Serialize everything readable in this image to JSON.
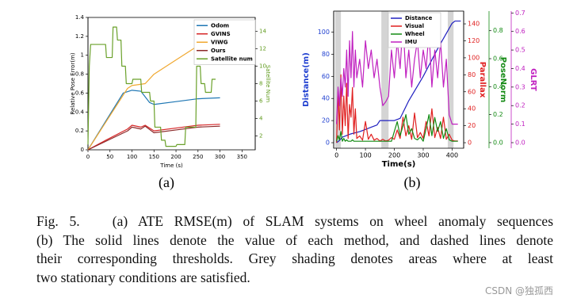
{
  "chart_data": [
    {
      "type": "line",
      "label": "(a)",
      "xlabel": "Time (s)",
      "ylabel": "Relative Pose Error(m)",
      "y2label": "Satellite Num",
      "y2color": "#5f9a1c",
      "xlim": [
        0,
        380
      ],
      "xticks": [
        0,
        50,
        100,
        150,
        200,
        250,
        300,
        350
      ],
      "ylim": [
        0,
        1.4
      ],
      "yticks": [
        0,
        0.2,
        0.4,
        0.6,
        0.8,
        1,
        1.2,
        1.4
      ],
      "y2lim": [
        0.4,
        15.6
      ],
      "y2ticks": [
        2,
        4,
        6,
        8,
        10,
        12,
        14
      ],
      "legend": "upper right",
      "series": [
        {
          "name": "Odom",
          "color": "#1f77b4",
          "x": [
            0,
            20,
            40,
            60,
            80,
            100,
            120,
            140,
            150,
            200,
            250,
            300
          ],
          "values": [
            0,
            0.15,
            0.3,
            0.45,
            0.6,
            0.63,
            0.62,
            0.5,
            0.48,
            0.51,
            0.54,
            0.55
          ]
        },
        {
          "name": "GVINS",
          "color": "#d62728",
          "x": [
            0,
            40,
            90,
            100,
            120,
            130,
            150,
            200,
            250,
            300
          ],
          "values": [
            0,
            0.1,
            0.22,
            0.26,
            0.24,
            0.26,
            0.2,
            0.23,
            0.26,
            0.27
          ]
        },
        {
          "name": "VIWG",
          "color": "#f0a830",
          "x": [
            0,
            90,
            100,
            130,
            150,
            200,
            250,
            280
          ],
          "values": [
            0,
            0.65,
            0.68,
            0.7,
            0.8,
            0.95,
            1.1,
            1.17
          ]
        },
        {
          "name": "Ours",
          "color": "#8c2a2a",
          "x": [
            0,
            90,
            100,
            120,
            130,
            150,
            200,
            250,
            300
          ],
          "values": [
            0,
            0.2,
            0.24,
            0.22,
            0.25,
            0.18,
            0.21,
            0.24,
            0.25
          ]
        },
        {
          "name": "Satellite num",
          "color": "#6aa12a",
          "axis": "y2",
          "x": [
            0,
            3,
            6,
            10,
            40,
            42,
            55,
            57,
            65,
            67,
            75,
            77,
            85,
            87,
            100,
            102,
            120,
            122,
            140,
            142,
            150,
            152,
            165,
            167,
            175,
            177,
            200,
            202,
            220,
            222,
            245,
            247,
            255,
            257,
            265,
            267,
            280,
            282,
            290
          ],
          "values": [
            1,
            10,
            12.5,
            12.5,
            12.5,
            11,
            11,
            14.5,
            14.5,
            13,
            13,
            10,
            10,
            8,
            8,
            8.5,
            8.5,
            7,
            7,
            6,
            6,
            3,
            3,
            1.5,
            1.5,
            0.8,
            0.8,
            1,
            1,
            3,
            3,
            10,
            10,
            8,
            8,
            7,
            7,
            8.5,
            8.5
          ]
        }
      ]
    },
    {
      "type": "line",
      "label": "(b)",
      "xlabel": "Time(s)",
      "ylabel": "Distance(m)",
      "ycolor": "#1f3fd0",
      "y2label": "Parallax",
      "y2color": "#e02020",
      "y3label": "PoseNorm",
      "y3color": "#138a13",
      "y4label": "GLRT",
      "y4color": "#c020c0",
      "xlim": [
        -10,
        440
      ],
      "xticks": [
        0,
        100,
        200,
        300,
        400
      ],
      "ylim": [
        -5,
        119
      ],
      "yticks": [
        0,
        20,
        40,
        60,
        80,
        100
      ],
      "y2lim": [
        -6.5,
        155
      ],
      "y2ticks": [
        0,
        20,
        40,
        60,
        80,
        100,
        120,
        140
      ],
      "y3lim": [
        -0.04,
        0.94
      ],
      "y3ticks": [
        {
          "value": 0,
          "label": "0.0"
        },
        0.2,
        0.4,
        0.6,
        0.8
      ],
      "y4lim": [
        -0.03,
        0.71
      ],
      "y4ticks": [
        {
          "value": 0,
          "label": "0.0"
        },
        0.1,
        0.2,
        0.3,
        0.4,
        0.5,
        0.6,
        0.7
      ],
      "shading": [
        [
          -5,
          15
        ],
        [
          155,
          180
        ],
        [
          385,
          405
        ]
      ],
      "shading_color": "#d4d4d4",
      "legend": "upper center",
      "series": [
        {
          "name": "Distance",
          "color": "#2020c0",
          "x": [
            0,
            10,
            20,
            50,
            80,
            100,
            120,
            140,
            150,
            160,
            200,
            220,
            250,
            300,
            350,
            400,
            410,
            430
          ],
          "values": [
            0,
            2,
            5,
            8,
            10,
            12,
            14,
            16,
            20,
            20,
            20,
            22,
            38,
            60,
            85,
            108,
            110,
            110
          ]
        },
        {
          "name": "Visual",
          "color": "#e02020",
          "axis": "y2",
          "x": [
            0,
            5,
            10,
            15,
            20,
            25,
            30,
            35,
            40,
            45,
            50,
            55,
            60,
            65,
            70,
            80,
            90,
            100,
            110,
            120,
            130,
            140,
            150,
            160,
            170,
            180,
            190,
            200,
            210,
            220,
            230,
            240,
            250,
            260,
            270,
            280,
            290,
            300,
            310,
            320,
            330,
            340,
            350,
            360,
            370,
            380,
            390,
            400,
            410,
            420
          ],
          "values": [
            0,
            60,
            15,
            80,
            10,
            55,
            20,
            70,
            5,
            45,
            30,
            65,
            10,
            40,
            5,
            8,
            3,
            25,
            4,
            10,
            3,
            5,
            2,
            4,
            2,
            3,
            6,
            4,
            15,
            5,
            30,
            8,
            20,
            4,
            35,
            6,
            12,
            5,
            25,
            8,
            40,
            6,
            18,
            5,
            30,
            4,
            10,
            3,
            2,
            2
          ]
        },
        {
          "name": "Wheel",
          "color": "#138a13",
          "axis": "y3",
          "x": [
            0,
            5,
            10,
            15,
            20,
            25,
            30,
            35,
            40,
            45,
            50,
            55,
            60,
            65,
            70,
            80,
            90,
            100,
            110,
            120,
            130,
            140,
            150,
            160,
            170,
            180,
            190,
            200,
            210,
            220,
            230,
            240,
            250,
            260,
            270,
            280,
            290,
            300,
            310,
            320,
            330,
            340,
            350,
            360,
            370,
            380,
            390,
            400,
            410,
            420
          ],
          "values": [
            0.01,
            0.05,
            0.02,
            0.08,
            0.01,
            0.03,
            0.01,
            0.02,
            0.01,
            0.01,
            0.01,
            0.02,
            0.01,
            0.01,
            0.01,
            0.01,
            0.01,
            0.01,
            0.01,
            0.01,
            0.01,
            0.01,
            0.01,
            0.01,
            0.01,
            0.01,
            0.01,
            0.08,
            0.15,
            0.05,
            0.12,
            0.2,
            0.06,
            0.1,
            0.03,
            0.02,
            0.04,
            0.01,
            0.1,
            0.2,
            0.05,
            0.18,
            0.08,
            0.15,
            0.03,
            0.1,
            0.02,
            0.01,
            0.01,
            0.01
          ]
        },
        {
          "name": "IMU",
          "color": "#c020c0",
          "axis": "y4",
          "x": [
            0,
            5,
            10,
            15,
            20,
            25,
            30,
            35,
            40,
            45,
            50,
            55,
            60,
            65,
            70,
            80,
            90,
            100,
            110,
            120,
            130,
            140,
            150,
            160,
            170,
            180,
            190,
            200,
            210,
            220,
            230,
            240,
            250,
            260,
            270,
            280,
            290,
            300,
            310,
            320,
            330,
            340,
            350,
            360,
            370,
            380,
            390,
            400,
            410,
            420
          ],
          "values": [
            0.1,
            0.3,
            0.2,
            0.35,
            0.25,
            0.4,
            0.3,
            0.5,
            0.25,
            0.55,
            0.35,
            0.6,
            0.3,
            0.5,
            0.35,
            0.45,
            0.3,
            0.55,
            0.4,
            0.5,
            0.35,
            0.45,
            0.3,
            0.2,
            0.22,
            0.25,
            0.5,
            0.35,
            0.55,
            0.4,
            0.65,
            0.35,
            0.5,
            0.3,
            0.45,
            0.55,
            0.35,
            0.5,
            0.4,
            0.6,
            0.3,
            0.5,
            0.35,
            0.55,
            0.3,
            0.45,
            0.15,
            0.1,
            0.1,
            0.1
          ]
        }
      ]
    }
  ],
  "caption": [
    "Fig. 5.   (a) ATE RMSE(m) of SLAM systems on wheel anomaly sequences",
    "(b) The solid lines denote the value of each method, and dashed lines denote",
    "their corresponding thresholds. Grey shading denotes areas where at least",
    "two stationary conditions are satisfied."
  ],
  "watermark": "CSDN @独孤西"
}
